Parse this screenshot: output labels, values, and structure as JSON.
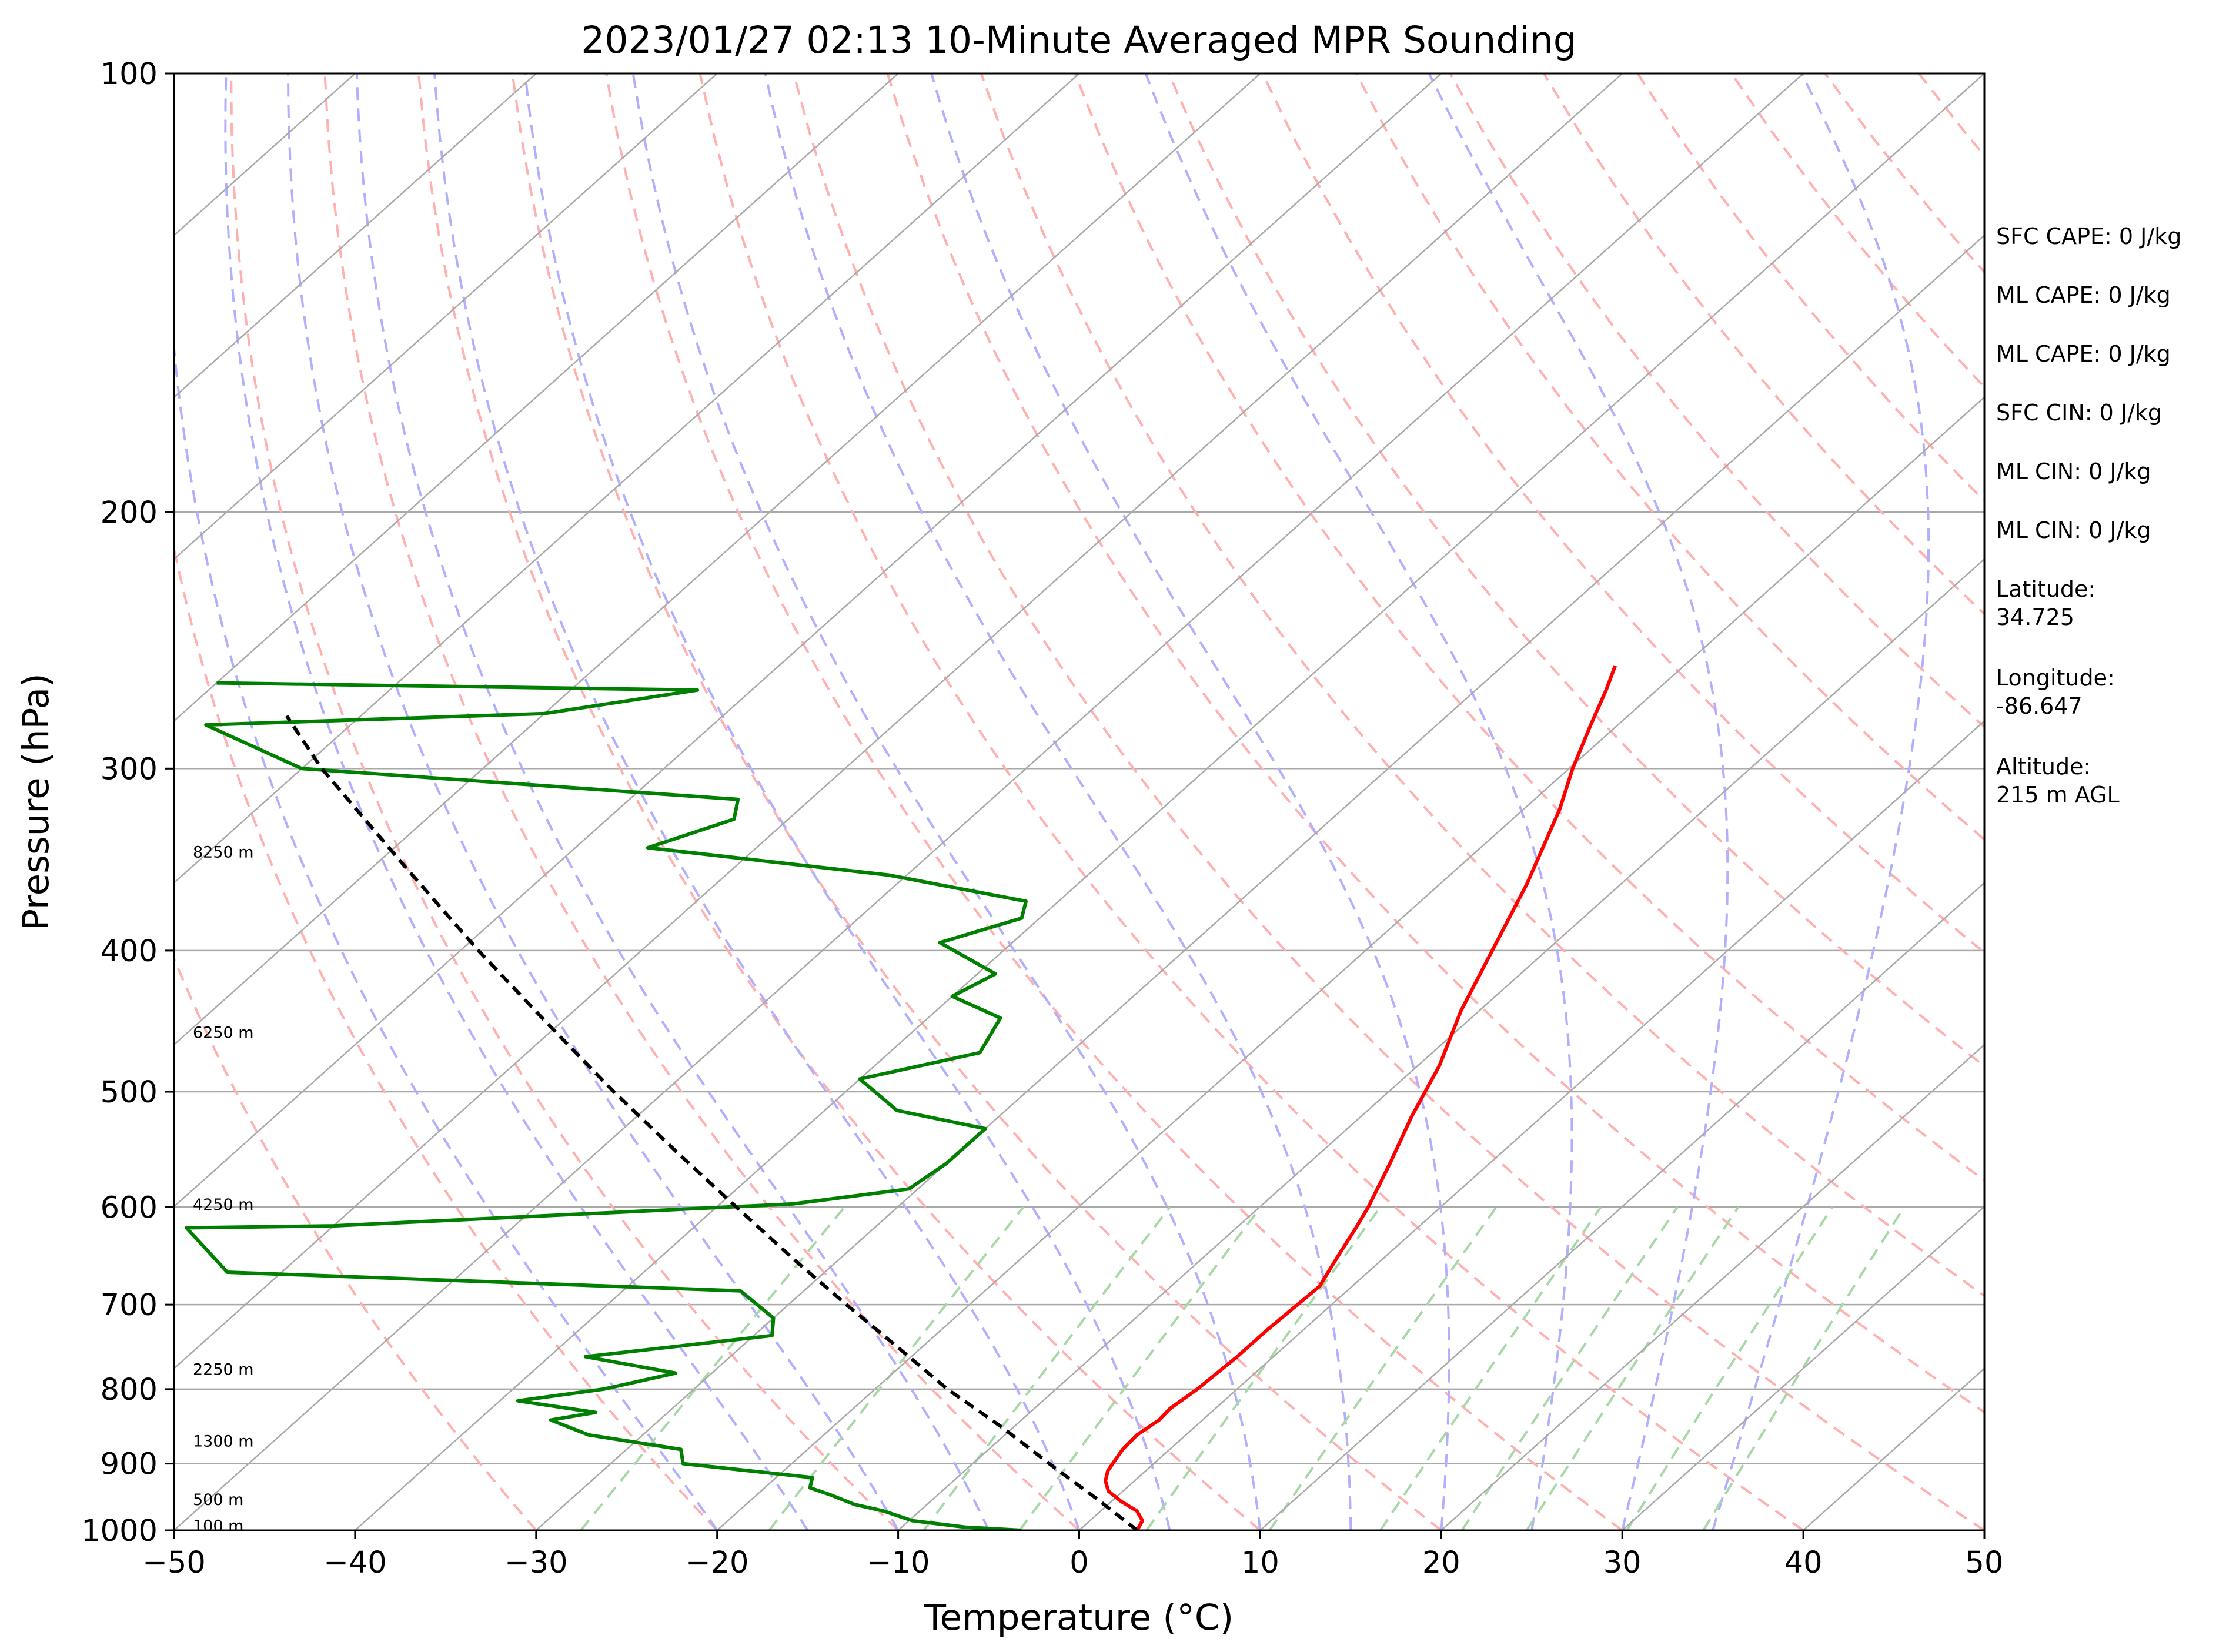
{
  "chart_data": {
    "type": "line",
    "title": "2023/01/27 02:13 10-Minute Averaged MPR Sounding",
    "xlabel": "Temperature (°C)",
    "ylabel": "Pressure (hPa)",
    "xlim": [
      -50,
      50
    ],
    "ylim": [
      1000,
      100
    ],
    "y_scale": "log",
    "x_ticks": [
      "−50",
      "−40",
      "−30",
      "−20",
      "−10",
      "0",
      "10",
      "20",
      "30",
      "40",
      "50"
    ],
    "x_tick_values": [
      -50,
      -40,
      -30,
      -20,
      -10,
      0,
      10,
      20,
      30,
      40,
      50
    ],
    "y_ticks": [
      "1000",
      "900",
      "800",
      "700",
      "600",
      "500",
      "400",
      "300",
      "200",
      "100"
    ],
    "y_tick_values": [
      1000,
      900,
      800,
      700,
      600,
      500,
      400,
      300,
      200,
      100
    ],
    "grid": "horizontal isobars",
    "colors": {
      "temperature": "#ff0000",
      "dewpoint": "#008000",
      "parcel": "#000000",
      "isotherm": "#a9a9a9",
      "dry_adiabat": "#ffb0b0",
      "moist_adiabat": "#b0b0ff",
      "mixing_ratio": "#a8d8a8"
    },
    "skew_isotherms": [
      -130,
      -120,
      -110,
      -100,
      -90,
      -80,
      -70,
      -60,
      -50,
      -40,
      -30,
      -20,
      -10,
      0,
      10,
      20,
      30,
      40,
      50
    ],
    "dry_adiabat_thetas_C": [
      -30,
      -20,
      -10,
      0,
      10,
      20,
      30,
      40,
      50,
      60,
      70,
      80,
      90,
      100,
      110,
      120,
      130,
      140,
      150,
      160,
      170
    ],
    "moist_adiabat_start_C": [
      -20,
      -15,
      -10,
      -5,
      0,
      5,
      10,
      15,
      20,
      25,
      30,
      35
    ],
    "mixing_ratios_gkg": [
      0.4,
      1,
      2,
      3,
      5,
      8,
      12,
      16,
      20,
      28,
      36
    ],
    "series": [
      {
        "key": "temperature",
        "points": [
          {
            "p": 1000,
            "t": 3.2
          },
          {
            "p": 985,
            "t": 2.9
          },
          {
            "p": 970,
            "t": 2.0
          },
          {
            "p": 955,
            "t": 0.5
          },
          {
            "p": 940,
            "t": -0.8
          },
          {
            "p": 925,
            "t": -1.6
          },
          {
            "p": 910,
            "t": -2.1
          },
          {
            "p": 880,
            "t": -2.6
          },
          {
            "p": 860,
            "t": -2.7
          },
          {
            "p": 840,
            "t": -2.4
          },
          {
            "p": 825,
            "t": -2.5
          },
          {
            "p": 800,
            "t": -2.2
          },
          {
            "p": 760,
            "t": -2.0
          },
          {
            "p": 730,
            "t": -2.0
          },
          {
            "p": 680,
            "t": -1.8
          },
          {
            "p": 650,
            "t": -2.6
          },
          {
            "p": 620,
            "t": -3.4
          },
          {
            "p": 600,
            "t": -4.0
          },
          {
            "p": 560,
            "t": -5.5
          },
          {
            "p": 520,
            "t": -7.2
          },
          {
            "p": 480,
            "t": -8.8
          },
          {
            "p": 440,
            "t": -11.0
          },
          {
            "p": 400,
            "t": -13.0
          },
          {
            "p": 360,
            "t": -15.2
          },
          {
            "p": 320,
            "t": -18.0
          },
          {
            "p": 300,
            "t": -19.8
          },
          {
            "p": 280,
            "t": -21.5
          },
          {
            "p": 265,
            "t": -22.8
          },
          {
            "p": 255,
            "t": -23.8
          }
        ]
      },
      {
        "key": "dewpoint",
        "points": [
          {
            "p": 1000,
            "t": -3.2
          },
          {
            "p": 995,
            "t": -6.5
          },
          {
            "p": 985,
            "t": -9.8
          },
          {
            "p": 970,
            "t": -12.0
          },
          {
            "p": 960,
            "t": -14.0
          },
          {
            "p": 945,
            "t": -16.0
          },
          {
            "p": 935,
            "t": -17.5
          },
          {
            "p": 920,
            "t": -18.0
          },
          {
            "p": 910,
            "t": -22.0
          },
          {
            "p": 900,
            "t": -26.0
          },
          {
            "p": 880,
            "t": -27.0
          },
          {
            "p": 860,
            "t": -33.0
          },
          {
            "p": 840,
            "t": -36.0
          },
          {
            "p": 830,
            "t": -34.0
          },
          {
            "p": 815,
            "t": -39.0
          },
          {
            "p": 800,
            "t": -35.0
          },
          {
            "p": 780,
            "t": -32.0
          },
          {
            "p": 760,
            "t": -38.0
          },
          {
            "p": 735,
            "t": -29.0
          },
          {
            "p": 715,
            "t": -30.0
          },
          {
            "p": 685,
            "t": -33.5
          },
          {
            "p": 665,
            "t": -63.0
          },
          {
            "p": 620,
            "t": -68.0
          },
          {
            "p": 618,
            "t": -60.0
          },
          {
            "p": 597,
            "t": -36.0
          },
          {
            "p": 583,
            "t": -30.5
          },
          {
            "p": 560,
            "t": -30.0
          },
          {
            "p": 530,
            "t": -30.0
          },
          {
            "p": 515,
            "t": -36.0
          },
          {
            "p": 490,
            "t": -40.0
          },
          {
            "p": 470,
            "t": -35.0
          },
          {
            "p": 445,
            "t": -36.0
          },
          {
            "p": 430,
            "t": -40.0
          },
          {
            "p": 415,
            "t": -39.0
          },
          {
            "p": 395,
            "t": -44.0
          },
          {
            "p": 380,
            "t": -41.0
          },
          {
            "p": 370,
            "t": -41.8
          },
          {
            "p": 355,
            "t": -51.0
          },
          {
            "p": 340,
            "t": -66.0
          },
          {
            "p": 325,
            "t": -63.0
          },
          {
            "p": 315,
            "t": -64.0
          },
          {
            "p": 300,
            "t": -90.0
          },
          {
            "p": 280,
            "t": -98.0
          },
          {
            "p": 275,
            "t": -80.0
          },
          {
            "p": 265,
            "t": -73.0
          },
          {
            "p": 262,
            "t": -100.0
          }
        ]
      },
      {
        "key": "parcel",
        "points": [
          {
            "p": 1000,
            "t": 3.2
          },
          {
            "p": 950,
            "t": -1.1
          },
          {
            "p": 905,
            "t": -5.3
          },
          {
            "p": 850,
            "t": -10.6
          },
          {
            "p": 800,
            "t": -16.0
          },
          {
            "p": 750,
            "t": -21.2
          },
          {
            "p": 700,
            "t": -26.8
          },
          {
            "p": 650,
            "t": -32.7
          },
          {
            "p": 600,
            "t": -38.9
          },
          {
            "p": 550,
            "t": -45.6
          },
          {
            "p": 500,
            "t": -52.8
          },
          {
            "p": 450,
            "t": -60.5
          },
          {
            "p": 400,
            "t": -69.0
          },
          {
            "p": 350,
            "t": -78.3
          },
          {
            "p": 300,
            "t": -88.9
          },
          {
            "p": 276,
            "t": -94.1
          }
        ]
      }
    ],
    "height_labels": [
      {
        "text": "100 m",
        "p": 992
      },
      {
        "text": "500 m",
        "p": 952
      },
      {
        "text": "1300 m",
        "p": 868
      },
      {
        "text": "2250 m",
        "p": 775
      },
      {
        "text": "4250 m",
        "p": 597
      },
      {
        "text": "6250 m",
        "p": 455
      },
      {
        "text": "8250 m",
        "p": 342
      }
    ],
    "stats": [
      [
        "SFC CAPE: 0 J/kg"
      ],
      [
        "ML CAPE: 0 J/kg"
      ],
      [
        "ML CAPE: 0 J/kg"
      ],
      [
        "SFC CIN: 0 J/kg"
      ],
      [
        "ML CIN: 0 J/kg"
      ],
      [
        "ML CIN: 0 J/kg"
      ],
      [
        "Latitude:",
        "34.725"
      ],
      [
        "Longitude:",
        "-86.647"
      ],
      [
        "Altitude:",
        "215 m AGL"
      ]
    ]
  }
}
